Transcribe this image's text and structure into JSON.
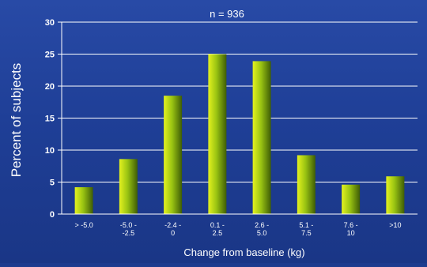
{
  "chart_data": {
    "type": "bar",
    "title": "n = 936",
    "xlabel": "Change from baseline (kg)",
    "ylabel": "Percent of subjects",
    "categories": [
      [
        "> -5.0"
      ],
      [
        "-5.0 -",
        "-2.5"
      ],
      [
        "-2.4 -",
        "0"
      ],
      [
        "0.1 -",
        "2.5"
      ],
      [
        "2.6 -",
        "5.0"
      ],
      [
        "5.1 -",
        "7.5"
      ],
      [
        "7.6 -",
        "10"
      ],
      [
        ">10"
      ]
    ],
    "values": [
      4.2,
      8.6,
      18.5,
      25.0,
      23.9,
      9.2,
      4.6,
      5.9
    ],
    "ylim": [
      0,
      30
    ],
    "yticks": [
      0,
      5,
      10,
      15,
      20,
      25,
      30
    ],
    "grid": true,
    "legend": "none",
    "colors": {
      "background": "#1f3f97",
      "bar_light": "#e4f21f",
      "bar_mid": "#9ac412",
      "bar_dark": "#3e5d06",
      "text": "#ffffff",
      "grid": "#ffffff"
    }
  }
}
